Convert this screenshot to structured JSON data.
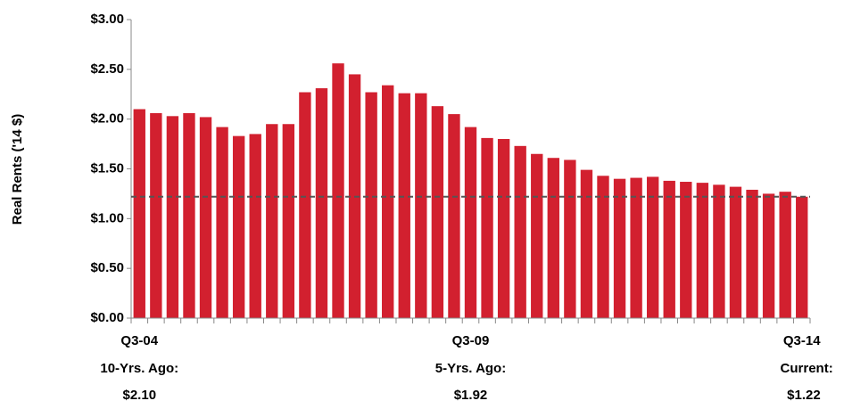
{
  "chart_data": {
    "type": "bar",
    "y_label": "Real Rents ('14 $)",
    "categories": [
      "Q3-04",
      null,
      null,
      null,
      null,
      null,
      null,
      null,
      null,
      null,
      null,
      null,
      null,
      null,
      null,
      null,
      null,
      null,
      null,
      null,
      "Q3-09",
      null,
      null,
      null,
      null,
      null,
      null,
      null,
      null,
      null,
      null,
      null,
      null,
      null,
      null,
      null,
      null,
      null,
      null,
      null,
      "Q3-14"
    ],
    "values": [
      2.1,
      2.06,
      2.03,
      2.06,
      2.02,
      1.92,
      1.83,
      1.85,
      1.95,
      1.95,
      2.27,
      2.31,
      2.56,
      2.45,
      2.27,
      2.34,
      2.26,
      2.26,
      2.13,
      2.05,
      1.92,
      1.81,
      1.8,
      1.73,
      1.65,
      1.61,
      1.59,
      1.49,
      1.43,
      1.4,
      1.41,
      1.42,
      1.38,
      1.37,
      1.36,
      1.34,
      1.32,
      1.29,
      1.25,
      1.27,
      1.22
    ],
    "color": "#d2202f",
    "ylim": [
      0,
      3
    ],
    "yticks": [
      {
        "value": 0,
        "label": "$0.00"
      },
      {
        "value": 0.5,
        "label": "$0.50"
      },
      {
        "value": 1,
        "label": "$1.00"
      },
      {
        "value": 1.5,
        "label": "$1.50"
      },
      {
        "value": 2,
        "label": "$2.00"
      },
      {
        "value": 2.5,
        "label": "$2.50"
      },
      {
        "value": 3,
        "label": "$3.00"
      }
    ],
    "reference_line": 1.22,
    "annotations": [
      {
        "title": "10-Yrs. Ago:",
        "value": "$2.10"
      },
      {
        "title": "5-Yrs. Ago:",
        "value": "$1.92"
      },
      {
        "title": "Current:",
        "value": "$1.22"
      }
    ]
  }
}
